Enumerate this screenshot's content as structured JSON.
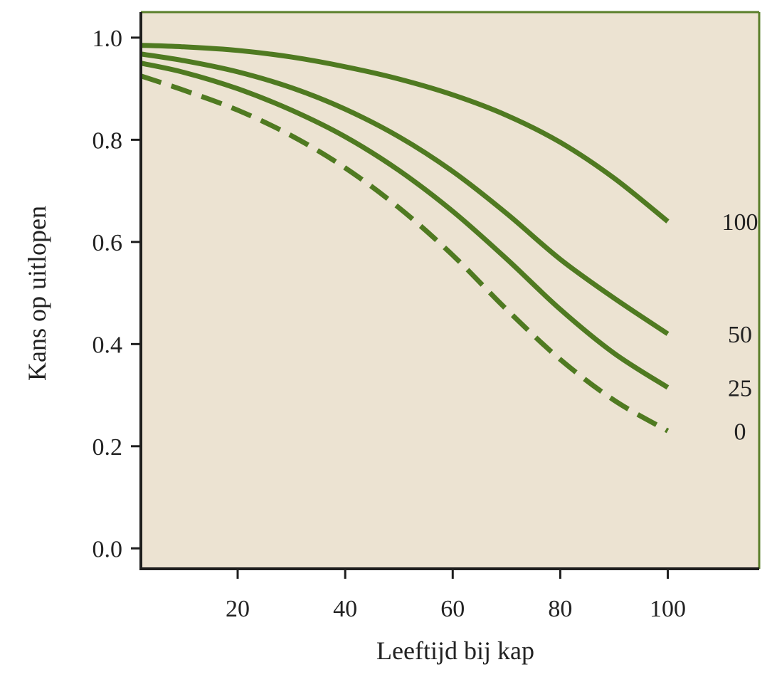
{
  "colors": {
    "plot_background": "#ece3d2",
    "plot_border": "#5a7f2a",
    "axis_line": "#1e1e1e",
    "series_line": "#4f7a21",
    "text": "#222222"
  },
  "chart_data": {
    "type": "line",
    "title": "",
    "xlabel": "Leeftijd bij kap",
    "ylabel": "Kans op uitlopen",
    "xlim": [
      2,
      117
    ],
    "ylim": [
      -0.04,
      1.05
    ],
    "xticks": [
      20,
      40,
      60,
      80,
      100
    ],
    "xtick_labels": [
      "20",
      "40",
      "60",
      "80",
      "100"
    ],
    "yticks": [
      0.0,
      0.2,
      0.4,
      0.6,
      0.8,
      1.0
    ],
    "ytick_labels": [
      "0.0",
      "0.2",
      "0.4",
      "0.6",
      "0.8",
      "1.0"
    ],
    "grid": false,
    "legend": "none (series labelled at right end of lines)",
    "x": [
      2,
      10,
      20,
      30,
      40,
      50,
      60,
      70,
      80,
      90,
      100
    ],
    "series": [
      {
        "name": "100",
        "style": "solid",
        "values": [
          0.985,
          0.982,
          0.975,
          0.962,
          0.943,
          0.919,
          0.888,
          0.848,
          0.795,
          0.725,
          0.64
        ]
      },
      {
        "name": "50",
        "style": "solid",
        "values": [
          0.968,
          0.955,
          0.933,
          0.902,
          0.86,
          0.806,
          0.738,
          0.656,
          0.566,
          0.49,
          0.42
        ]
      },
      {
        "name": "25",
        "style": "solid",
        "values": [
          0.95,
          0.932,
          0.9,
          0.858,
          0.806,
          0.74,
          0.66,
          0.567,
          0.468,
          0.382,
          0.315
        ]
      },
      {
        "name": "0",
        "style": "dashed",
        "values": [
          0.925,
          0.897,
          0.858,
          0.808,
          0.745,
          0.667,
          0.574,
          0.468,
          0.37,
          0.29,
          0.23
        ]
      }
    ]
  }
}
